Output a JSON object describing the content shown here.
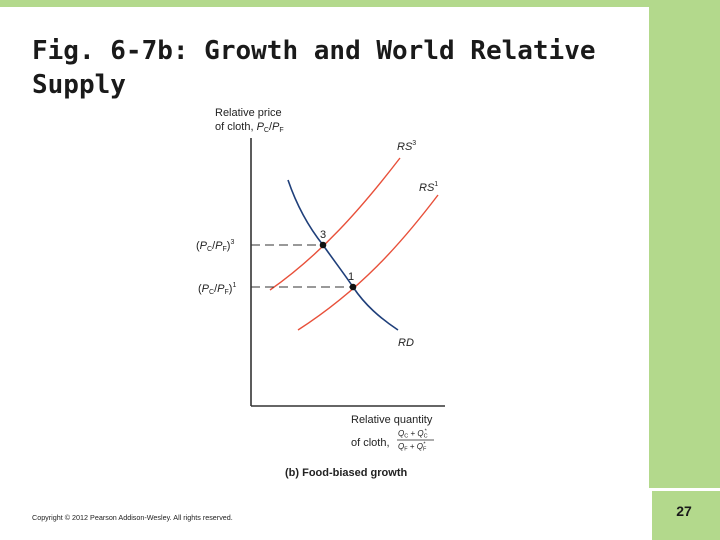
{
  "slide": {
    "title": "Fig. 6-7b: Growth and World Relative\nSupply",
    "page_number": "27",
    "copyright": "Copyright © 2012 Pearson Addison-Wesley. All rights reserved."
  },
  "colors": {
    "accent_green": "#b3d98c",
    "supply_curve": "#e8503a",
    "demand_curve": "#1f3f7a",
    "axis": "#333333"
  },
  "figure": {
    "y_axis_label_line1": "Relative price",
    "y_axis_label_line2_prefix": "of cloth, ",
    "x_axis_label_line1": "Relative quantity",
    "x_axis_label_line2_prefix": "of cloth, ",
    "caption": "(b) Food-biased growth",
    "curves": {
      "rs3": {
        "name": "RS",
        "sup": "3"
      },
      "rs1": {
        "name": "RS",
        "sup": "1"
      },
      "rd": {
        "name": "RD"
      }
    },
    "equilibria": [
      {
        "label": "3",
        "price_label_sup": "3"
      },
      {
        "label": "1",
        "price_label_sup": "1"
      }
    ]
  }
}
